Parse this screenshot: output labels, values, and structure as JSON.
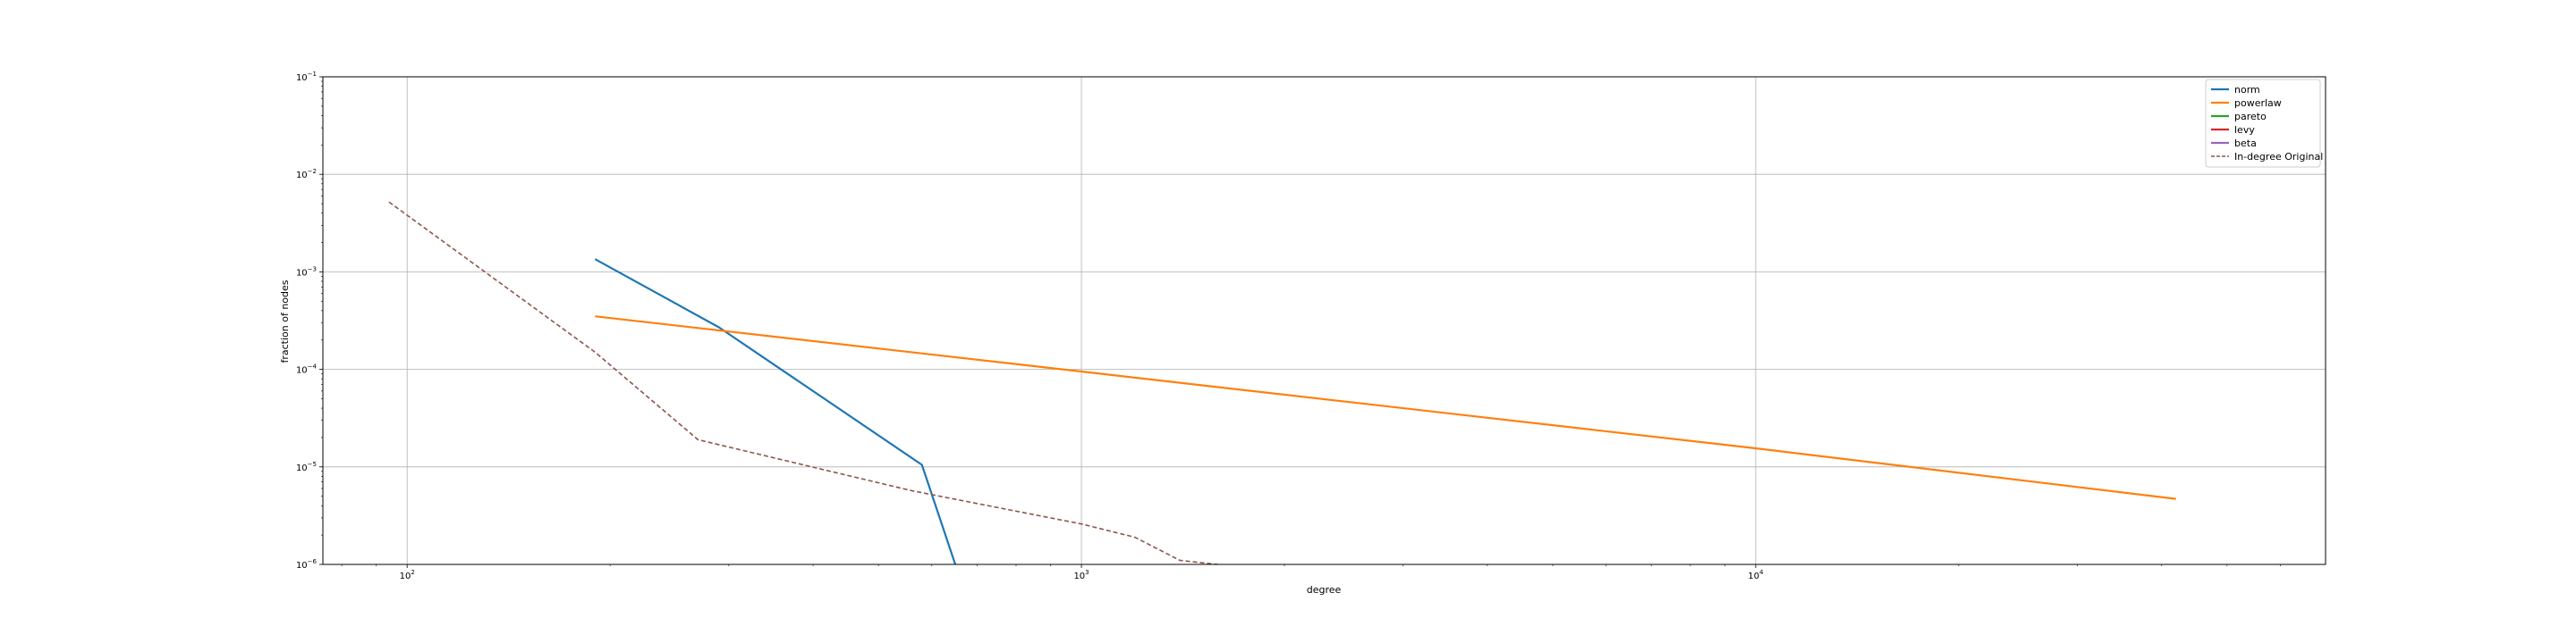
{
  "chart_data": {
    "type": "line",
    "title": "",
    "xlabel": "degree",
    "ylabel": "fraction of nodes",
    "xscale": "log",
    "yscale": "log",
    "xlim": [
      75,
      70000
    ],
    "ylim": [
      1e-06,
      0.1
    ],
    "grid": true,
    "legend_position": "top-right",
    "x_ticks": [
      {
        "value": 100,
        "base": "10",
        "exp": "2"
      },
      {
        "value": 1000,
        "base": "10",
        "exp": "3"
      },
      {
        "value": 10000,
        "base": "10",
        "exp": "4"
      }
    ],
    "y_ticks": [
      {
        "value": 1e-06,
        "base": "10",
        "exp": "−6"
      },
      {
        "value": 1e-05,
        "base": "10",
        "exp": "−5"
      },
      {
        "value": 0.0001,
        "base": "10",
        "exp": "−4"
      },
      {
        "value": 0.001,
        "base": "10",
        "exp": "−3"
      },
      {
        "value": 0.01,
        "base": "10",
        "exp": "−2"
      },
      {
        "value": 0.1,
        "base": "10",
        "exp": "−1"
      }
    ],
    "series": [
      {
        "name": "norm",
        "color": "#1f77b4",
        "style": "solid",
        "points": [
          [
            190,
            0.00135
          ],
          [
            290,
            0.00027
          ],
          [
            580,
            1.05e-05
          ],
          [
            650,
            1e-06
          ]
        ]
      },
      {
        "name": "powerlaw",
        "color": "#ff7f0e",
        "style": "solid",
        "points": [
          [
            190,
            0.00035
          ],
          [
            1000,
            9.5e-05
          ],
          [
            10000,
            1.55e-05
          ],
          [
            42000,
            4.7e-06
          ]
        ]
      },
      {
        "name": "pareto",
        "color": "#2ca02c",
        "style": "solid",
        "points": []
      },
      {
        "name": "levy",
        "color": "#d62728",
        "style": "solid",
        "points": []
      },
      {
        "name": "beta",
        "color": "#9467bd",
        "style": "solid",
        "points": []
      },
      {
        "name": "In-degree Original",
        "color": "#8c564b",
        "style": "dashed",
        "points": [
          [
            94,
            0.0052
          ],
          [
            190,
            0.00015
          ],
          [
            270,
            1.9e-05
          ],
          [
            560,
            5.7e-06
          ],
          [
            1000,
            2.6e-06
          ],
          [
            1200,
            1.9e-06
          ],
          [
            1400,
            1.1e-06
          ],
          [
            1700,
            9.5e-07
          ]
        ]
      }
    ]
  }
}
